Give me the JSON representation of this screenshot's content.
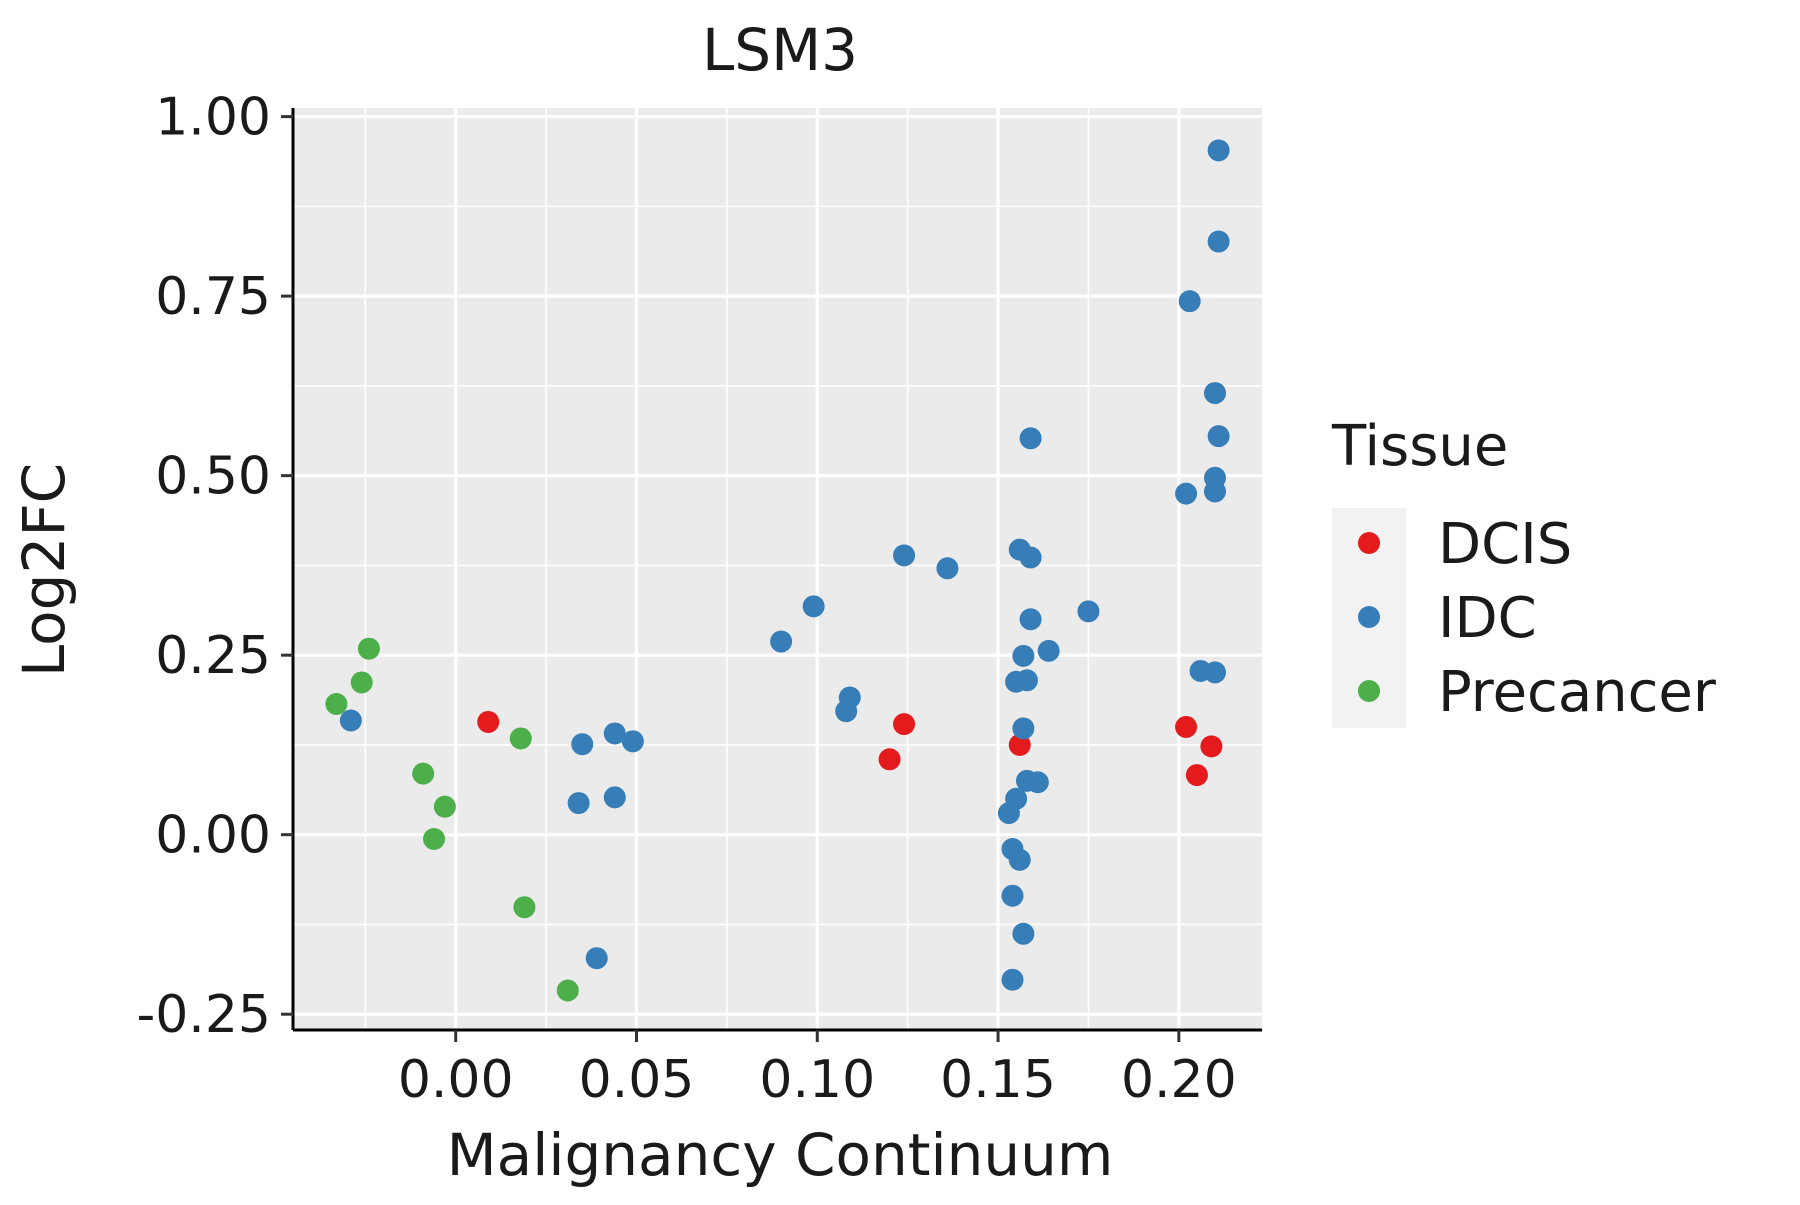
{
  "chart_data": {
    "type": "scatter",
    "title": "LSM3",
    "xlabel": "Malignancy Continuum",
    "ylabel": "Log2FC",
    "xlim": [
      -0.045,
      0.223
    ],
    "ylim": [
      -0.272,
      1.012
    ],
    "x_ticks": [
      0.0,
      0.05,
      0.1,
      0.15,
      0.2
    ],
    "x_tick_labels": [
      "0.00",
      "0.05",
      "0.10",
      "0.15",
      "0.20"
    ],
    "y_ticks": [
      -0.25,
      0.0,
      0.25,
      0.5,
      0.75,
      1.0
    ],
    "y_tick_labels": [
      "-0.25",
      "0.00",
      "0.25",
      "0.50",
      "0.75",
      "1.00"
    ],
    "grid": true,
    "legend": {
      "title": "Tissue",
      "position": "right",
      "entries": [
        {
          "name": "DCIS",
          "color": "#e41a1c"
        },
        {
          "name": "IDC",
          "color": "#377eb8"
        },
        {
          "name": "Precancer",
          "color": "#4daf4a"
        }
      ]
    },
    "series": [
      {
        "name": "DCIS",
        "color": "#e41a1c",
        "points": [
          [
            0.009,
            0.157
          ],
          [
            0.12,
            0.105
          ],
          [
            0.124,
            0.154
          ],
          [
            0.156,
            0.125
          ],
          [
            0.202,
            0.15
          ],
          [
            0.205,
            0.083
          ],
          [
            0.209,
            0.123
          ]
        ]
      },
      {
        "name": "IDC",
        "color": "#377eb8",
        "points": [
          [
            -0.029,
            0.159
          ],
          [
            0.034,
            0.044
          ],
          [
            0.035,
            0.126
          ],
          [
            0.039,
            -0.172
          ],
          [
            0.044,
            0.052
          ],
          [
            0.044,
            0.141
          ],
          [
            0.049,
            0.13
          ],
          [
            0.09,
            0.269
          ],
          [
            0.099,
            0.318
          ],
          [
            0.108,
            0.172
          ],
          [
            0.109,
            0.191
          ],
          [
            0.124,
            0.389
          ],
          [
            0.136,
            0.371
          ],
          [
            0.153,
            0.03
          ],
          [
            0.154,
            -0.02
          ],
          [
            0.154,
            -0.085
          ],
          [
            0.154,
            -0.202
          ],
          [
            0.155,
            0.213
          ],
          [
            0.155,
            0.05
          ],
          [
            0.156,
            0.397
          ],
          [
            0.156,
            -0.035
          ],
          [
            0.157,
            0.148
          ],
          [
            0.157,
            -0.138
          ],
          [
            0.157,
            0.249
          ],
          [
            0.158,
            0.215
          ],
          [
            0.158,
            0.075
          ],
          [
            0.159,
            0.3
          ],
          [
            0.159,
            0.386
          ],
          [
            0.159,
            0.552
          ],
          [
            0.161,
            0.073
          ],
          [
            0.164,
            0.256
          ],
          [
            0.175,
            0.311
          ],
          [
            0.202,
            0.475
          ],
          [
            0.203,
            0.743
          ],
          [
            0.206,
            0.228
          ],
          [
            0.21,
            0.226
          ],
          [
            0.21,
            0.615
          ],
          [
            0.21,
            0.497
          ],
          [
            0.21,
            0.478
          ],
          [
            0.211,
            0.555
          ],
          [
            0.211,
            0.826
          ],
          [
            0.211,
            0.953
          ]
        ]
      },
      {
        "name": "Precancer",
        "color": "#4daf4a",
        "points": [
          [
            -0.033,
            0.182
          ],
          [
            -0.026,
            0.212
          ],
          [
            -0.024,
            0.259
          ],
          [
            -0.009,
            0.085
          ],
          [
            -0.006,
            -0.006
          ],
          [
            -0.003,
            0.039
          ],
          [
            0.018,
            0.134
          ],
          [
            0.019,
            -0.101
          ],
          [
            0.031,
            -0.217
          ]
        ]
      }
    ]
  }
}
